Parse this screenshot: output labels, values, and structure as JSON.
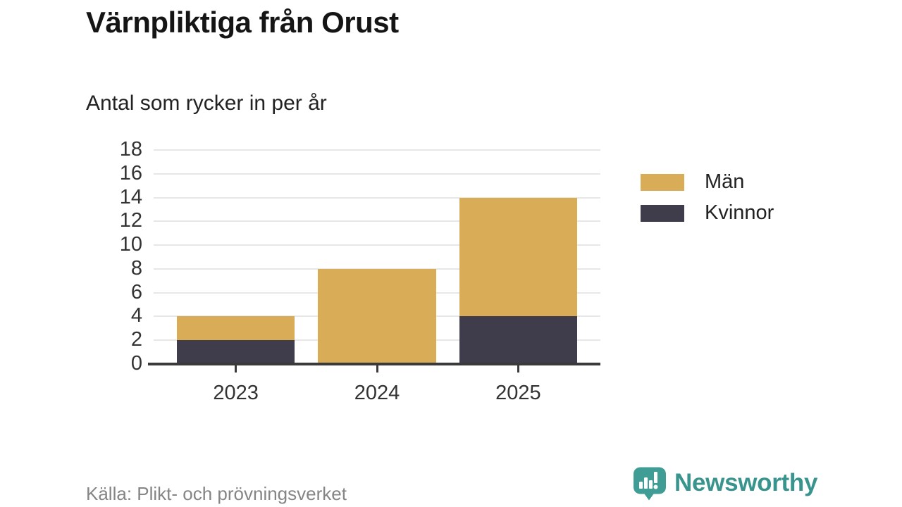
{
  "header": {
    "title": "Värnpliktiga från Orust",
    "subtitle": "Antal som rycker in per år"
  },
  "chart_data": {
    "type": "bar",
    "stacked": true,
    "title": "Värnpliktiga från Orust",
    "subtitle": "Antal som rycker in per år",
    "categories": [
      "2023",
      "2024",
      "2025"
    ],
    "series": [
      {
        "name": "Män",
        "color": "#d9ac58",
        "values": [
          2,
          8,
          10
        ]
      },
      {
        "name": "Kvinnor",
        "color": "#3f3d4c",
        "values": [
          2,
          0,
          4
        ]
      }
    ],
    "stack_totals": [
      4,
      8,
      14
    ],
    "xlabel": "",
    "ylabel": "",
    "ylim": [
      0,
      18
    ],
    "ytick_step": 2,
    "grid": true,
    "legend_position": "right"
  },
  "footer": {
    "source": "Källa: Plikt- och prövningsverket",
    "brand": "Newsworthy"
  },
  "colors": {
    "men": "#d9ac58",
    "women": "#3f3d4c",
    "axis": "#3a3a3a",
    "gridline": "#e7e7e7",
    "text_dark": "#333333",
    "text_muted": "#858585",
    "brand_teal": "#39948e",
    "logo_teal": "#3f9d96"
  }
}
